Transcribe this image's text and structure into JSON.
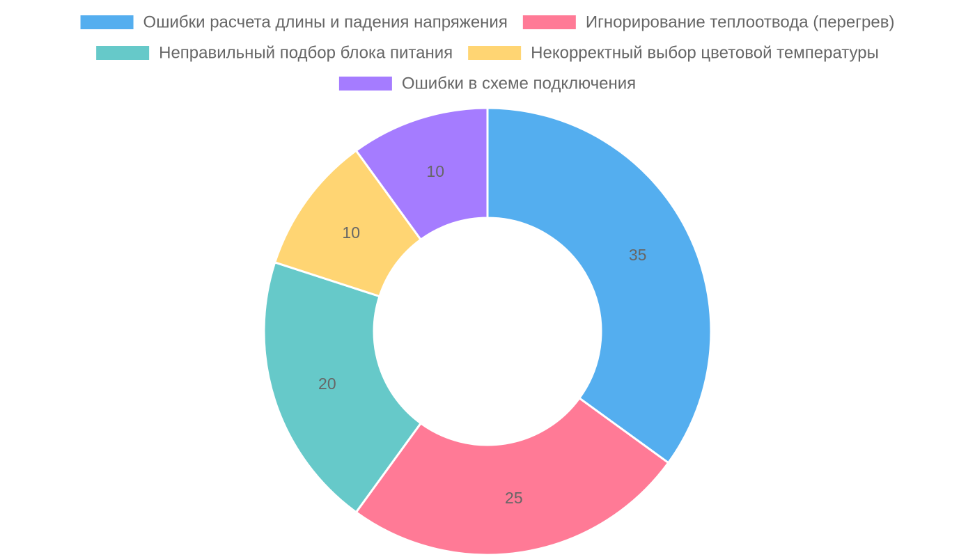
{
  "chart_data": {
    "type": "pie",
    "variant": "doughnut",
    "categories": [
      "Ошибки расчета длины и падения напряжения",
      "Игнорирование теплоотвода (перегрев)",
      "Неправильный подбор блока питания",
      "Некорректный выбор цветовой температуры",
      "Ошибки в схеме подключения"
    ],
    "values": [
      35,
      25,
      20,
      10,
      10
    ],
    "colors": [
      "#54aeef",
      "#ff7a96",
      "#66c9c9",
      "#ffd573",
      "#a57cff"
    ],
    "legend_position": "top",
    "show_value_labels": true
  }
}
